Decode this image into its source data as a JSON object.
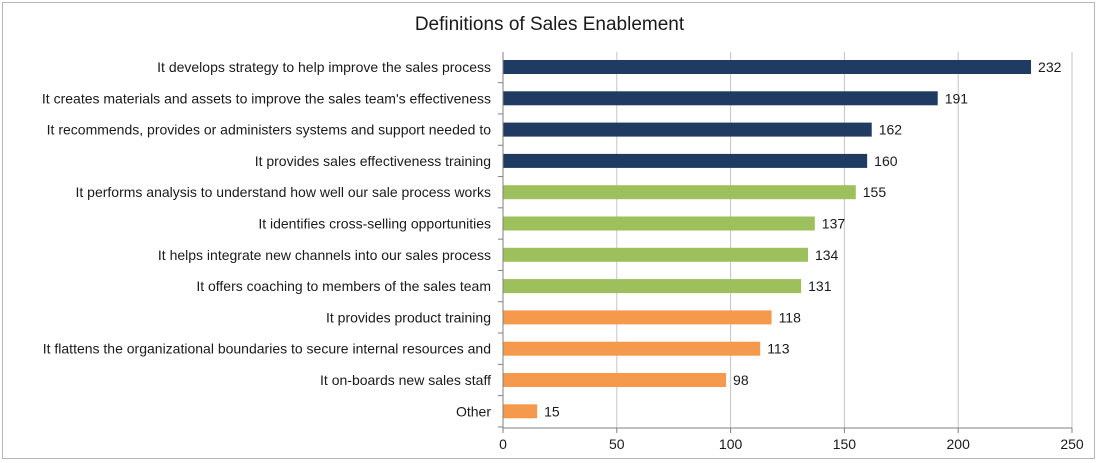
{
  "chart_data": {
    "type": "bar",
    "orientation": "horizontal",
    "title": "Definitions of Sales Enablement",
    "xlabel": "",
    "ylabel": "",
    "xlim": [
      0,
      250
    ],
    "x_ticks": [
      "0",
      "50",
      "100",
      "150",
      "200",
      "250"
    ],
    "x_tick_values": [
      0,
      50,
      100,
      150,
      200,
      250
    ],
    "grid": "vertical",
    "legend": "none",
    "colors": {
      "navy": "#1f3b61",
      "green": "#9dbf5c",
      "orange": "#f59a4c",
      "grid": "#c4c4c4",
      "axis": "#808080"
    },
    "categories": [
      "It develops strategy to help improve the sales process",
      "It creates materials and assets to improve the sales team's effectiveness",
      "It recommends, provides or administers systems and support needed to",
      "It provides sales effectiveness training",
      "It performs analysis to understand how well our sale process works",
      "It identifies cross-selling opportunities",
      "It helps integrate new channels into our sales process",
      "It offers coaching to members of the sales team",
      "It provides product training",
      "It flattens the organizational boundaries to secure internal resources and",
      "It on-boards new sales staff",
      "Other"
    ],
    "values": [
      232,
      191,
      162,
      160,
      155,
      137,
      134,
      131,
      118,
      113,
      98,
      15
    ],
    "value_labels": [
      "232",
      "191",
      "162",
      "160",
      "155",
      "137",
      "134",
      "131",
      "118",
      "113",
      "98",
      "15"
    ],
    "bar_colors": [
      "navy",
      "navy",
      "navy",
      "navy",
      "green",
      "green",
      "green",
      "green",
      "orange",
      "orange",
      "orange",
      "orange"
    ]
  }
}
